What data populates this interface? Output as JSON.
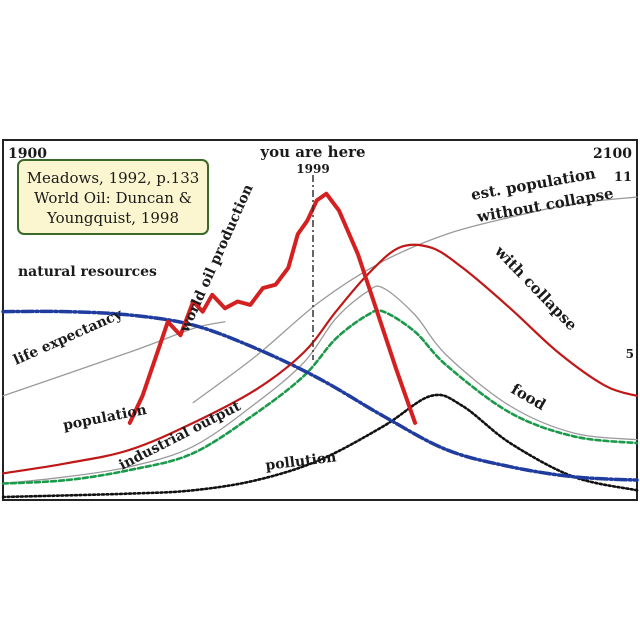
{
  "chart_data": {
    "type": "line",
    "title": "",
    "xlabel": "",
    "ylabel": "",
    "x_range": [
      1900,
      2100
    ],
    "year_start_label": "1900",
    "year_end_label": "2100",
    "you_are_here_label": "you are here",
    "you_are_here_year": "1999",
    "source_box": [
      "Meadows, 1992, p.133",
      "World Oil: Duncan &",
      "Youngquist, 1998"
    ],
    "right_values": {
      "top": "11",
      "bottom": "5"
    },
    "colors": {
      "oil": "#d42020",
      "population": "#c01818",
      "resources": "#1f3c9e",
      "food": "#1a9a4a",
      "pollution": "#111111",
      "thin": "#9a9a9a",
      "box_fill": "#fbf6cf",
      "box_stroke": "#3a6a2a"
    },
    "series": [
      {
        "name": "world oil production",
        "points": [
          [
            1940,
            0.22
          ],
          [
            1944,
            0.3
          ],
          [
            1948,
            0.41
          ],
          [
            1952,
            0.52
          ],
          [
            1956,
            0.48
          ],
          [
            1960,
            0.58
          ],
          [
            1963,
            0.55
          ],
          [
            1966,
            0.6
          ],
          [
            1970,
            0.56
          ],
          [
            1974,
            0.58
          ],
          [
            1978,
            0.57
          ],
          [
            1982,
            0.62
          ],
          [
            1986,
            0.63
          ],
          [
            1990,
            0.68
          ],
          [
            1993,
            0.78
          ],
          [
            1996,
            0.82
          ],
          [
            1999,
            0.88
          ],
          [
            2002,
            0.9
          ],
          [
            2006,
            0.85
          ],
          [
            2012,
            0.72
          ],
          [
            2018,
            0.55
          ],
          [
            2024,
            0.38
          ],
          [
            2030,
            0.22
          ]
        ]
      },
      {
        "name": "population",
        "points": [
          [
            1900,
            0.07
          ],
          [
            1920,
            0.1
          ],
          [
            1940,
            0.14
          ],
          [
            1960,
            0.22
          ],
          [
            1980,
            0.32
          ],
          [
            1995,
            0.43
          ],
          [
            2005,
            0.55
          ],
          [
            2015,
            0.66
          ],
          [
            2025,
            0.74
          ],
          [
            2035,
            0.74
          ],
          [
            2045,
            0.68
          ],
          [
            2060,
            0.56
          ],
          [
            2075,
            0.43
          ],
          [
            2090,
            0.33
          ],
          [
            2100,
            0.3
          ]
        ]
      },
      {
        "name": "est. population without collapse",
        "points": [
          [
            1960,
            0.28
          ],
          [
            1980,
            0.42
          ],
          [
            2000,
            0.58
          ],
          [
            2020,
            0.7
          ],
          [
            2040,
            0.78
          ],
          [
            2060,
            0.83
          ],
          [
            2080,
            0.87
          ],
          [
            2100,
            0.89
          ]
        ]
      },
      {
        "name": "natural resources",
        "points": [
          [
            1900,
            0.55
          ],
          [
            1920,
            0.55
          ],
          [
            1940,
            0.54
          ],
          [
            1960,
            0.51
          ],
          [
            1980,
            0.44
          ],
          [
            2000,
            0.35
          ],
          [
            2020,
            0.24
          ],
          [
            2040,
            0.14
          ],
          [
            2060,
            0.09
          ],
          [
            2080,
            0.06
          ],
          [
            2100,
            0.05
          ]
        ]
      },
      {
        "name": "industrial output",
        "points": [
          [
            1900,
            0.04
          ],
          [
            1920,
            0.06
          ],
          [
            1940,
            0.09
          ],
          [
            1960,
            0.15
          ],
          [
            1980,
            0.28
          ],
          [
            1995,
            0.4
          ],
          [
            2005,
            0.53
          ],
          [
            2015,
            0.61
          ],
          [
            2020,
            0.62
          ],
          [
            2030,
            0.54
          ],
          [
            2040,
            0.42
          ],
          [
            2060,
            0.27
          ],
          [
            2080,
            0.19
          ],
          [
            2100,
            0.17
          ]
        ]
      },
      {
        "name": "food",
        "points": [
          [
            1900,
            0.04
          ],
          [
            1920,
            0.05
          ],
          [
            1940,
            0.08
          ],
          [
            1960,
            0.13
          ],
          [
            1980,
            0.25
          ],
          [
            1995,
            0.36
          ],
          [
            2005,
            0.47
          ],
          [
            2015,
            0.54
          ],
          [
            2020,
            0.55
          ],
          [
            2030,
            0.49
          ],
          [
            2040,
            0.39
          ],
          [
            2060,
            0.25
          ],
          [
            2080,
            0.18
          ],
          [
            2100,
            0.16
          ]
        ]
      },
      {
        "name": "pollution",
        "points": [
          [
            1900,
            0.0
          ],
          [
            1940,
            0.01
          ],
          [
            1960,
            0.02
          ],
          [
            1980,
            0.05
          ],
          [
            2000,
            0.11
          ],
          [
            2020,
            0.21
          ],
          [
            2035,
            0.3
          ],
          [
            2045,
            0.27
          ],
          [
            2060,
            0.16
          ],
          [
            2080,
            0.06
          ],
          [
            2100,
            0.02
          ]
        ]
      },
      {
        "name": "life expectancy",
        "points": [
          [
            1900,
            0.3
          ],
          [
            1940,
            0.43
          ],
          [
            1960,
            0.5
          ],
          [
            1970,
            0.52
          ]
        ]
      }
    ],
    "labels": {
      "oil": "world oil production",
      "est_population": "est. population",
      "without_collapse": "without collapse",
      "with_collapse": "with collapse",
      "natural_resources": "natural resources",
      "life_expectancy": "life expectancy",
      "population": "population",
      "industrial_output": "industrial output",
      "food": "food",
      "pollution": "pollution"
    },
    "grid": false,
    "legend": "none"
  }
}
